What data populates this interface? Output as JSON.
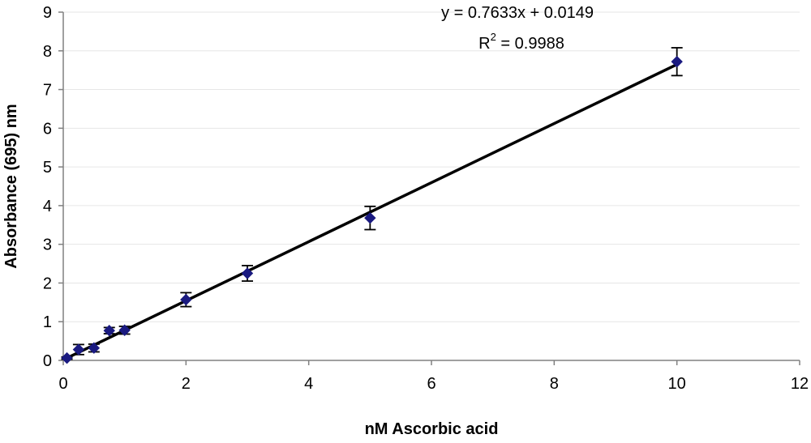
{
  "chart_data": {
    "type": "scatter",
    "title": "",
    "xlabel": "nM Ascorbic acid",
    "ylabel": "Absorbance (695) nm",
    "xlim": [
      0,
      12
    ],
    "ylim": [
      0,
      9
    ],
    "xticks": [
      0,
      2,
      4,
      6,
      8,
      10,
      12
    ],
    "yticks": [
      0,
      1,
      2,
      3,
      4,
      5,
      6,
      7,
      8,
      9
    ],
    "grid": "horizontal",
    "legend": "none",
    "marker": "diamond",
    "marker_color": "#1a1a80",
    "series": [
      {
        "points": [
          {
            "x": 0.06,
            "y": 0.06,
            "err": 0.03
          },
          {
            "x": 0.25,
            "y": 0.28,
            "err": 0.13
          },
          {
            "x": 0.5,
            "y": 0.32,
            "err": 0.1
          },
          {
            "x": 0.75,
            "y": 0.77,
            "err": 0.08
          },
          {
            "x": 1.0,
            "y": 0.78,
            "err": 0.1
          },
          {
            "x": 2.0,
            "y": 1.57,
            "err": 0.18
          },
          {
            "x": 3.0,
            "y": 2.25,
            "err": 0.2
          },
          {
            "x": 5.0,
            "y": 3.68,
            "err": 0.3
          },
          {
            "x": 10.0,
            "y": 7.72,
            "err": 0.36
          }
        ]
      }
    ],
    "trendline": {
      "type": "linear",
      "slope": 0.7633,
      "intercept": 0.0149,
      "x_range": [
        0.06,
        10
      ],
      "equation_label": "y = 0.7633x + 0.0149",
      "r2_prefix": "R",
      "r2_sup": "2",
      "r2_suffix": " = 0.9988"
    }
  }
}
